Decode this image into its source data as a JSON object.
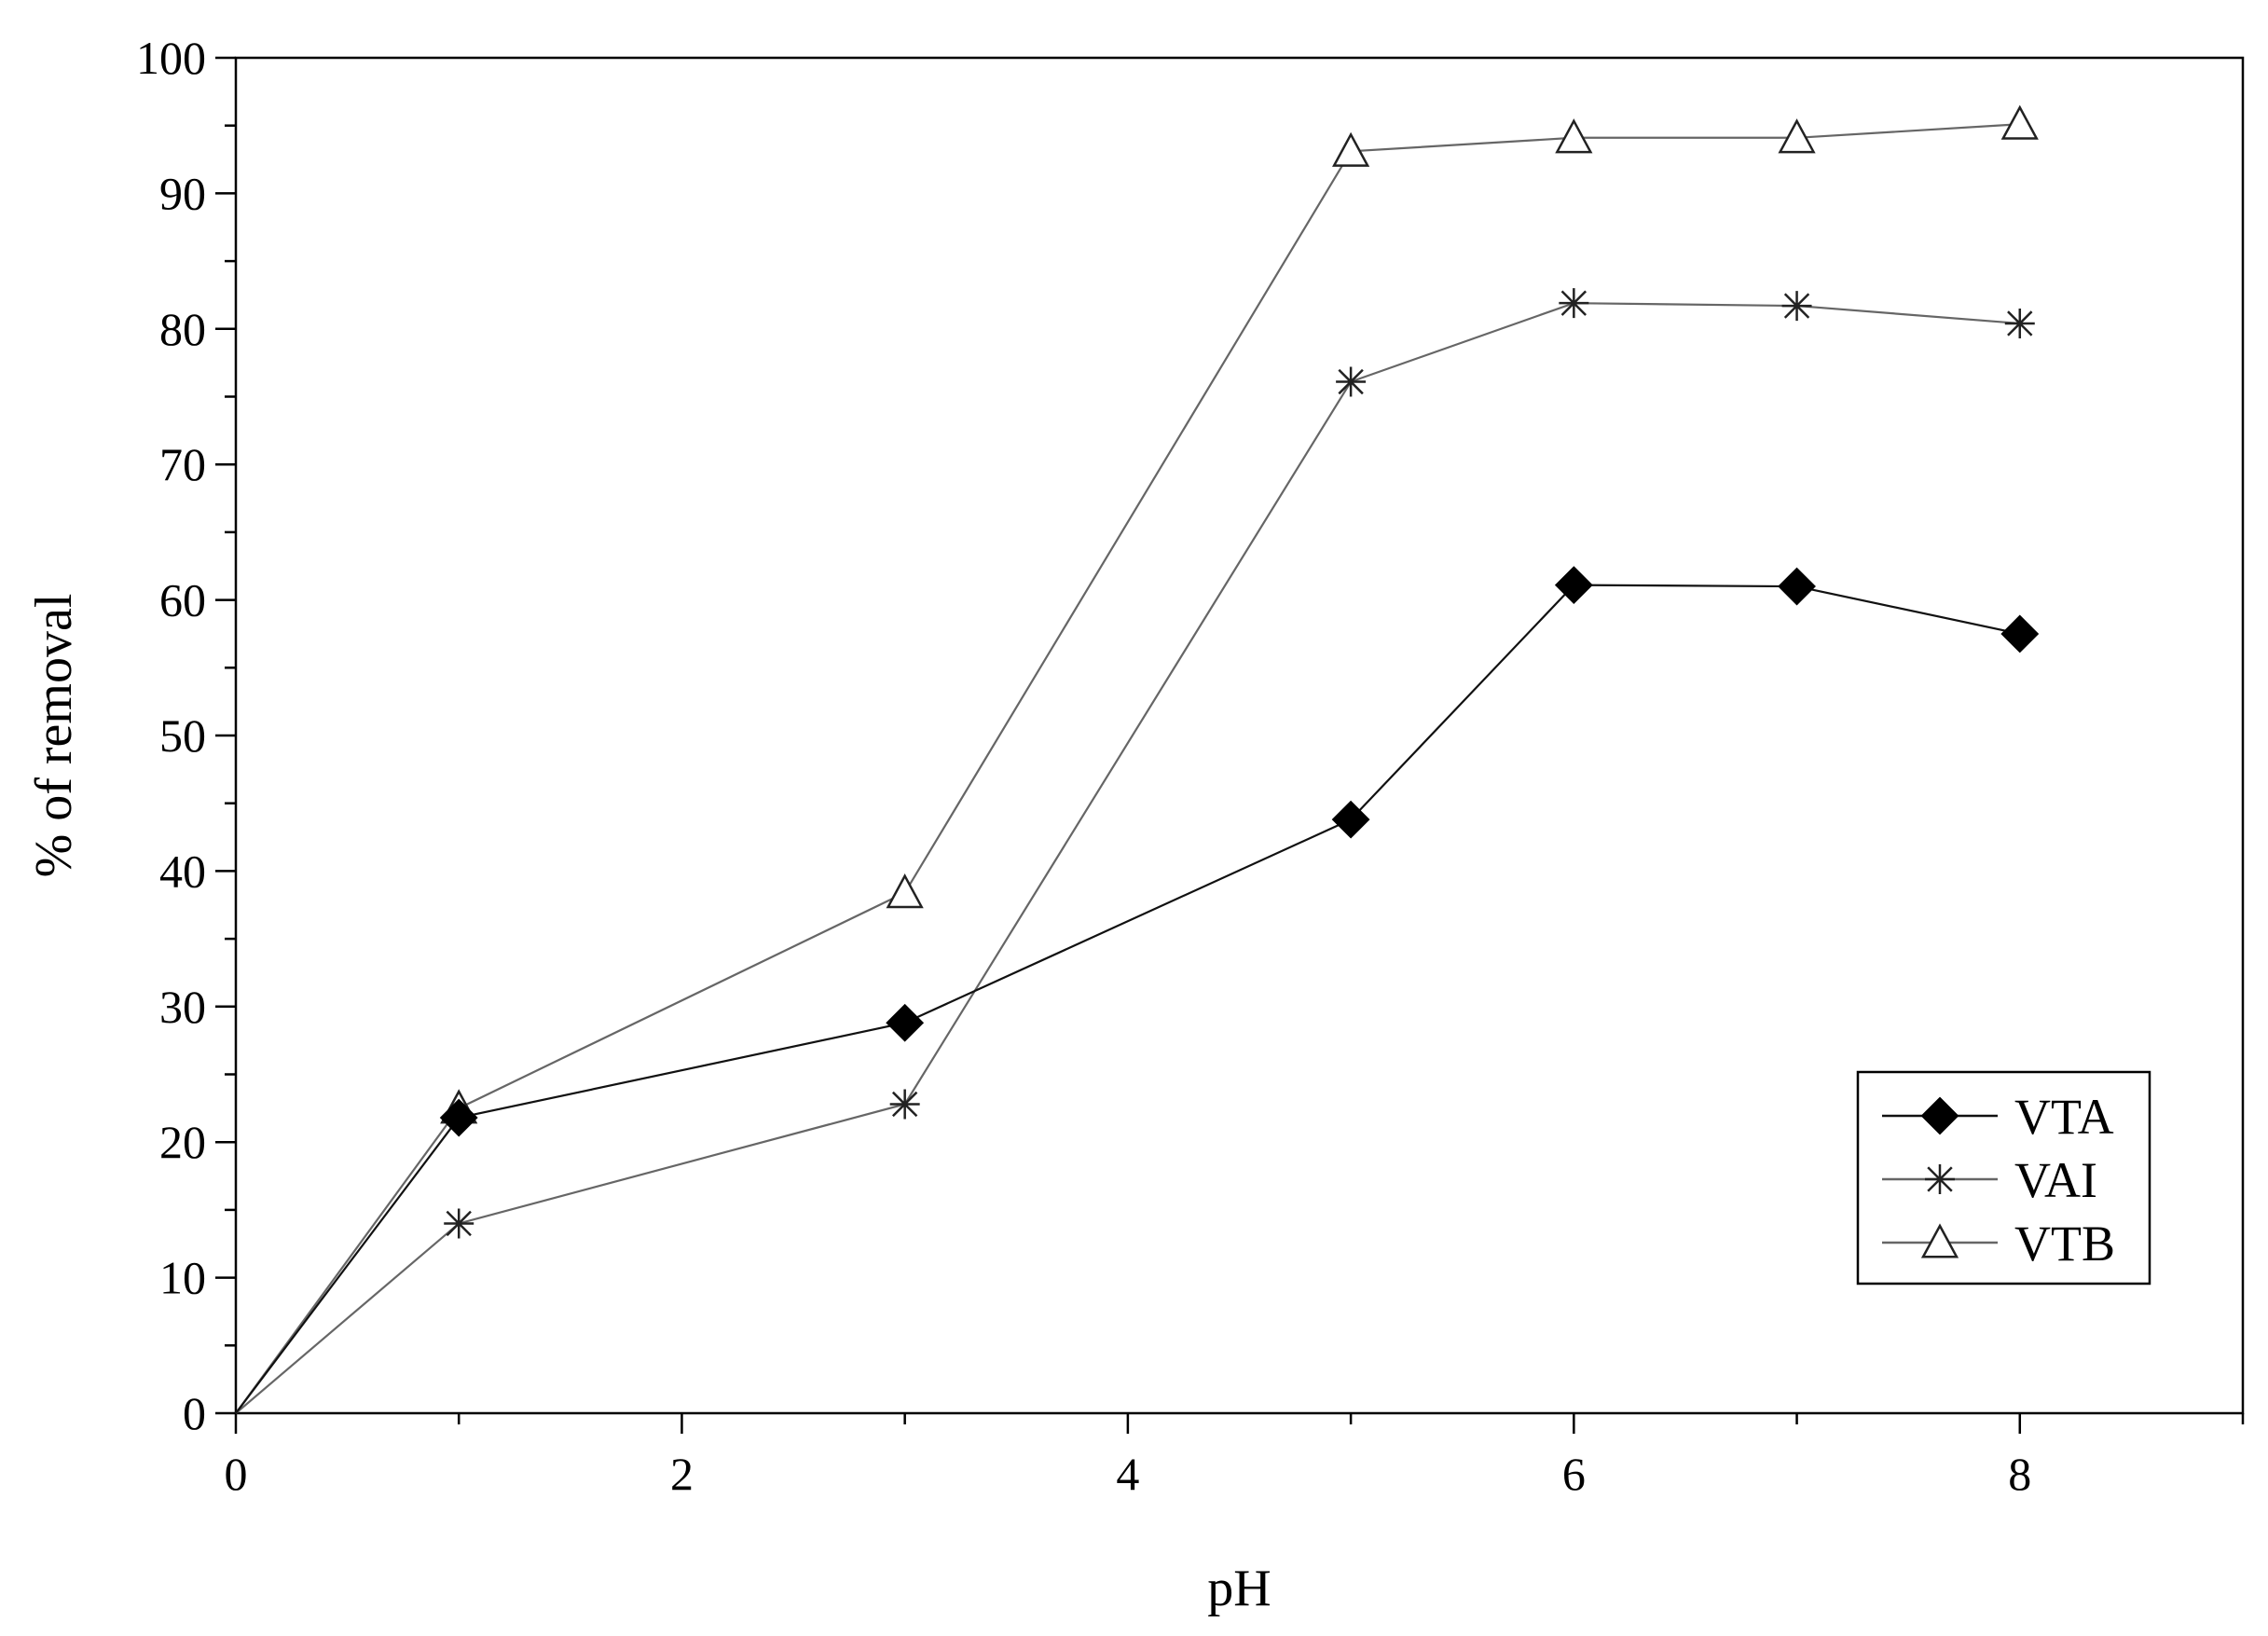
{
  "chart_data": {
    "type": "line",
    "title": "",
    "xlabel": "pH",
    "ylabel": "% of removal",
    "xlim": [
      0,
      9
    ],
    "ylim": [
      0,
      100
    ],
    "xticks_major": [
      0,
      2,
      4,
      6,
      8
    ],
    "xticks_minor": [
      1,
      3,
      5,
      7,
      9
    ],
    "yticks": [
      0,
      10,
      20,
      30,
      40,
      50,
      60,
      70,
      80,
      90,
      100
    ],
    "grid": false,
    "legend_position": "bottom-right",
    "series": [
      {
        "name": "VTA",
        "marker": "filled-diamond",
        "color": "#000000",
        "x": [
          0,
          1,
          3,
          5,
          6,
          7,
          8
        ],
        "values": [
          0,
          21.8,
          28.8,
          43.8,
          61.1,
          61.0,
          57.5
        ]
      },
      {
        "name": "VAI",
        "marker": "asterisk",
        "color": "#555555",
        "x": [
          0,
          1,
          3,
          5,
          6,
          7,
          8
        ],
        "values": [
          0,
          14.0,
          22.8,
          76.1,
          81.9,
          81.7,
          80.4
        ]
      },
      {
        "name": "VTB",
        "marker": "open-triangle",
        "color": "#555555",
        "x": [
          0,
          1,
          3,
          5,
          6,
          7,
          8
        ],
        "values": [
          0,
          22.5,
          38.4,
          93.1,
          94.1,
          94.1,
          95.1
        ]
      }
    ]
  }
}
